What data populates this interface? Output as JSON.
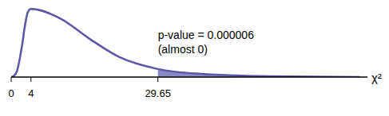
{
  "chart_data": {
    "type": "line",
    "x_label": "χ²",
    "annotation": [
      "p-value = 0.000006",
      "(almost 0)"
    ],
    "shade_from": 29.65,
    "x": [
      0,
      0.5,
      1.14,
      2.14,
      2.88,
      3.38,
      4,
      9.94,
      15.9,
      21.8,
      29.65,
      38.4,
      52.7,
      70.5
    ],
    "values": [
      0,
      0.002,
      0.011,
      0.059,
      0.108,
      0.129,
      0.135,
      0.116,
      0.0755,
      0.04,
      0.016,
      0.0064,
      0.0016,
      0
    ],
    "color": "#5b57a6",
    "shade_color": "#8a87c6",
    "xlim": [
      0,
      72
    ],
    "ylim": [
      0,
      0.145
    ],
    "xticks": [
      0,
      4,
      29.65
    ],
    "tick_labels": "x",
    "grid": false
  }
}
